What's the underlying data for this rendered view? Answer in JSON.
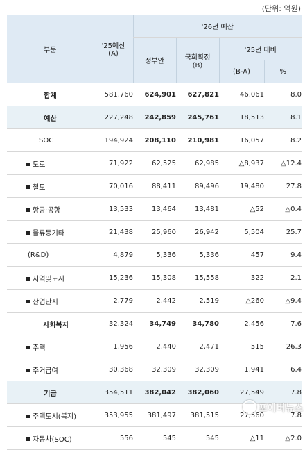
{
  "unit_note": "(단위: 억원)",
  "header": {
    "division": "부문",
    "budget25_line1": "'25예산",
    "budget25_line2": "(A)",
    "budget26": "'26년 예산",
    "gov_proposal": "정부안",
    "assembly_line1": "국회확정",
    "assembly_line2": "(B)",
    "vs25": "'25년 대비",
    "diff": "(B-A)",
    "pct": "%"
  },
  "rows": [
    {
      "label": "합계",
      "a": "581,760",
      "gov": "624,901",
      "b": "627,821",
      "diff": "46,061",
      "pct": "8.0"
    },
    {
      "label": "예산",
      "a": "227,248",
      "gov": "242,859",
      "b": "245,761",
      "diff": "18,513",
      "pct": "8.1"
    },
    {
      "label": "SOC",
      "a": "194,924",
      "gov": "208,110",
      "b": "210,981",
      "diff": "16,057",
      "pct": "8.2"
    },
    {
      "label": "도로",
      "a": "71,922",
      "gov": "62,525",
      "b": "62,985",
      "diff": "△8,937",
      "pct": "△12.4"
    },
    {
      "label": "철도",
      "a": "70,016",
      "gov": "88,411",
      "b": "89,496",
      "diff": "19,480",
      "pct": "27.8"
    },
    {
      "label": "항공·공항",
      "a": "13,533",
      "gov": "13,464",
      "b": "13,481",
      "diff": "△52",
      "pct": "△0.4"
    },
    {
      "label": "물류등기타",
      "a": "21,438",
      "gov": "25,960",
      "b": "26,942",
      "diff": "5,504",
      "pct": "25.7"
    },
    {
      "label": "(R&D)",
      "a": "4,879",
      "gov": "5,336",
      "b": "5,336",
      "diff": "457",
      "pct": "9.4"
    },
    {
      "label": "지역및도시",
      "a": "15,236",
      "gov": "15,308",
      "b": "15,558",
      "diff": "322",
      "pct": "2.1"
    },
    {
      "label": "산업단지",
      "a": "2,779",
      "gov": "2,442",
      "b": "2,519",
      "diff": "△260",
      "pct": "△9.4"
    },
    {
      "label": "사회복지",
      "a": "32,324",
      "gov": "34,749",
      "b": "34,780",
      "diff": "2,456",
      "pct": "7.6"
    },
    {
      "label": "주택",
      "a": "1,956",
      "gov": "2,440",
      "b": "2,471",
      "diff": "515",
      "pct": "26.3"
    },
    {
      "label": "주거급여",
      "a": "30,368",
      "gov": "32,309",
      "b": "32,309",
      "diff": "1,941",
      "pct": "6.4"
    },
    {
      "label": "기금",
      "a": "354,511",
      "gov": "382,042",
      "b": "382,060",
      "diff": "27,549",
      "pct": "7.8"
    },
    {
      "label": "주택도시(복지)",
      "a": "353,955",
      "gov": "381,497",
      "b": "381,515",
      "diff": "27,560",
      "pct": "7.8"
    },
    {
      "label": "자동차(SOC)",
      "a": "556",
      "gov": "545",
      "b": "545",
      "diff": "△11",
      "pct": "△2.0"
    }
  ],
  "watermark": "포에버뉴스"
}
